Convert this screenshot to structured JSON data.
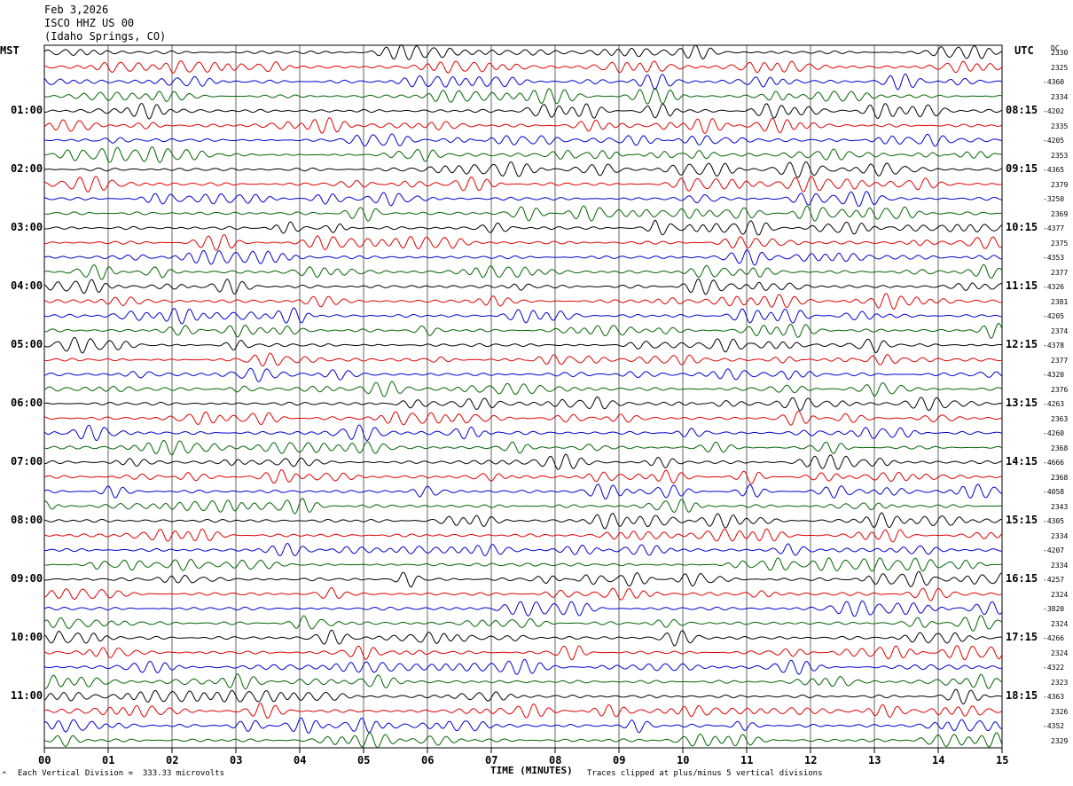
{
  "header": {
    "date": "Feb 3,2026",
    "station": "ISCO HHZ US 00",
    "location": "(Idaho Springs, CO)"
  },
  "left_tz": "MST",
  "right_tz": "UTC",
  "dc_label": "DC",
  "footer": {
    "scale": "Each Vertical Division =  333.33 microvolts",
    "clip": "Traces clipped at plus/minus 5 vertical divisions",
    "scale_marker": "^"
  },
  "colors": {
    "trace_cycle": [
      "#000000",
      "#e00000",
      "#0000d0",
      "#006400"
    ],
    "grid": "#000000"
  },
  "chart_data": {
    "type": "line",
    "title": "",
    "xlabel": "TIME (MINUTES)",
    "ylabel": "",
    "x_range": [
      0,
      15
    ],
    "x_ticks": [
      "00",
      "01",
      "02",
      "03",
      "04",
      "05",
      "06",
      "07",
      "08",
      "09",
      "10",
      "11",
      "12",
      "13",
      "14",
      "15"
    ],
    "rows": 48,
    "row_minutes": 15,
    "left_hour_labels": [
      "01:00",
      "02:00",
      "03:00",
      "04:00",
      "05:00",
      "06:00",
      "07:00",
      "08:00",
      "09:00",
      "10:00",
      "11:00"
    ],
    "right_hour_labels": [
      "08:15",
      "09:15",
      "10:15",
      "11:15",
      "12:15",
      "13:15",
      "14:15",
      "15:15",
      "16:15",
      "17:15",
      "18:15"
    ],
    "hour_label_first_row": 4,
    "hour_label_every": 4,
    "dc_offsets": [
      "2330",
      "2325",
      "-4360",
      "2334",
      "-4202",
      "2335",
      "-4205",
      "2353",
      "-4365",
      "2379",
      "-3250",
      "2369",
      "-4377",
      "2375",
      "-4353",
      "2377",
      "-4326",
      "2381",
      "-4205",
      "2374",
      "-4378",
      "2377",
      "-4320",
      "2376",
      "-4263",
      "2363",
      "-4260",
      "2368",
      "-4666",
      "2368",
      "-4058",
      "2343",
      "-4305",
      "2334",
      "-4207",
      "2334",
      "-4257",
      "2324",
      "-3820",
      "2324",
      "-4266",
      "2324",
      "-4322",
      "2323",
      "-4363",
      "2326",
      "-4352",
      "2329"
    ]
  }
}
